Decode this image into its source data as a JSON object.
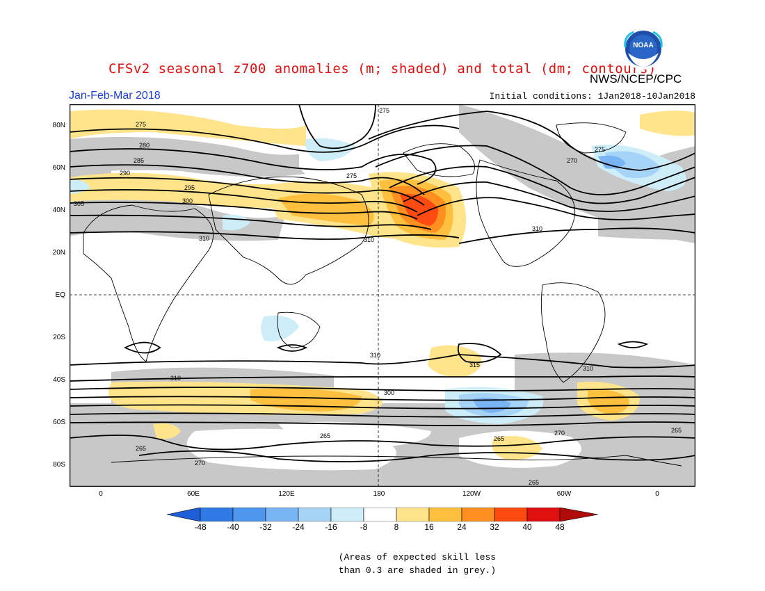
{
  "title": "CFSv2 seasonal z700 anomalies (m; shaded) and total (dm; contours)",
  "agency": "NWS/NCEP/CPC",
  "period": "Jan-Feb-Mar 2018",
  "initial_conditions": "Initial conditions: 1Jan2018-10Jan2018",
  "logo_text": "NOAA",
  "lat_labels": [
    "80N",
    "60N",
    "40N",
    "20N",
    "EQ",
    "20S",
    "40S",
    "60S",
    "80S"
  ],
  "lon_labels": [
    "0",
    "60E",
    "120E",
    "180",
    "120W",
    "60W",
    "0"
  ],
  "colorbar": {
    "labels": [
      "-48",
      "-40",
      "-32",
      "-24",
      "-16",
      "-8",
      "8",
      "16",
      "24",
      "32",
      "40",
      "48"
    ],
    "colors": [
      "#1e5fd8",
      "#2f7ae6",
      "#4f96ee",
      "#79b4f5",
      "#a6d3f8",
      "#cdeef8",
      "#ffffff",
      "#ffe48c",
      "#ffc040",
      "#ff8f20",
      "#ff4a12",
      "#e01010",
      "#b00a0a"
    ]
  },
  "contour_labels": [
    "275",
    "280",
    "285",
    "290",
    "295",
    "300",
    "305",
    "310",
    "315",
    "270",
    "265"
  ],
  "note_lines": [
    "(Areas of expected skill less",
    "than 0.3 are shaded in grey.)"
  ],
  "colors": {
    "title": "#e01010",
    "period": "#1a3fd6",
    "skill_grey": "#c8c8c8"
  }
}
